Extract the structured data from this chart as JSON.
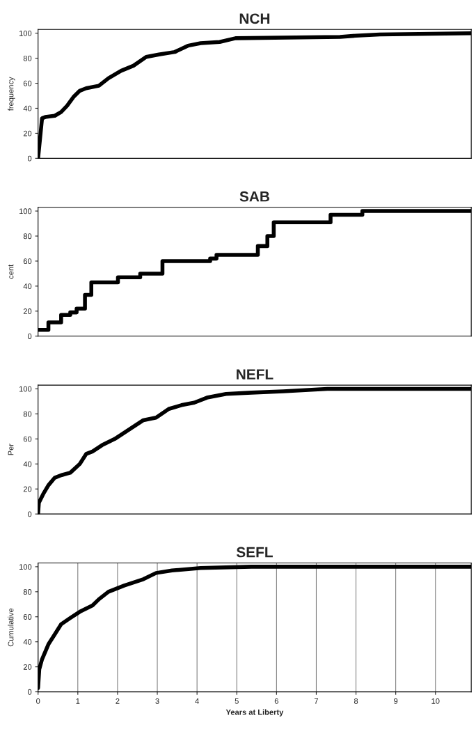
{
  "chart_data": [
    {
      "type": "line",
      "title": "NCH",
      "ylabel": "frequency",
      "xlim": [
        0,
        10.9
      ],
      "ylim": [
        0,
        103
      ],
      "yticks": [
        0,
        20,
        40,
        60,
        80,
        100
      ],
      "tick_labels": "y",
      "grid": false,
      "legend": false,
      "series": [
        {
          "color": "#000000",
          "x": [
            0,
            0.1,
            0.18,
            0.42,
            0.58,
            0.73,
            0.89,
            1.05,
            1.21,
            1.53,
            1.77,
            2.09,
            2.4,
            2.72,
            3.04,
            3.44,
            3.77,
            4.09,
            4.57,
            4.97,
            7.6,
            8.0,
            8.6,
            10.9
          ],
          "values": [
            0,
            32,
            33,
            34,
            37,
            42,
            49,
            54,
            56,
            58,
            64,
            70,
            74,
            81,
            83,
            85,
            90,
            92,
            93,
            96,
            97,
            98,
            99,
            100
          ]
        }
      ]
    },
    {
      "type": "step",
      "title": "SAB",
      "ylabel": "cent",
      "xlim": [
        0,
        10.9
      ],
      "ylim": [
        0,
        103
      ],
      "yticks": [
        0,
        20,
        40,
        60,
        80,
        100
      ],
      "tick_labels": "y",
      "grid": false,
      "legend": false,
      "series": [
        {
          "color": "#000000",
          "x": [
            0,
            0.18,
            0.26,
            0.58,
            0.81,
            0.97,
            1.18,
            1.34,
            2.01,
            2.57,
            3.13,
            4.33,
            4.49,
            5.53,
            5.77,
            5.93,
            7.36,
            8.16,
            10.9
          ],
          "values": [
            5,
            5,
            11,
            17,
            19,
            22,
            33,
            43,
            47,
            50,
            60,
            62,
            65,
            72,
            80,
            91,
            97,
            100,
            100
          ]
        }
      ]
    },
    {
      "type": "line",
      "title": "NEFL",
      "ylabel": "Per",
      "xlim": [
        0,
        10.9
      ],
      "ylim": [
        0,
        103
      ],
      "yticks": [
        0,
        20,
        40,
        60,
        80,
        100
      ],
      "tick_labels": "y",
      "grid": false,
      "legend": false,
      "series": [
        {
          "color": "#000000",
          "x": [
            0,
            0.02,
            0.13,
            0.26,
            0.42,
            0.58,
            0.81,
            1.05,
            1.21,
            1.37,
            1.61,
            1.93,
            2.17,
            2.41,
            2.65,
            2.97,
            3.29,
            3.61,
            3.93,
            4.25,
            4.73,
            5.37,
            6.17,
            7.28,
            10.9
          ],
          "values": [
            0,
            9,
            16,
            23,
            29,
            31,
            33,
            40,
            48,
            50,
            55,
            60,
            65,
            70,
            75,
            77,
            84,
            87,
            89,
            93,
            96,
            97,
            98,
            100,
            100
          ]
        }
      ]
    },
    {
      "type": "line",
      "title": "SEFL",
      "ylabel": "Cumulative",
      "xlabel": "Years at Liberty",
      "xlim": [
        0,
        10.9
      ],
      "ylim": [
        0,
        103
      ],
      "xticks": [
        0,
        1,
        2,
        3,
        4,
        5,
        6,
        7,
        8,
        9,
        10
      ],
      "yticks": [
        0,
        20,
        40,
        60,
        80,
        100
      ],
      "grid": "x",
      "legend": false,
      "series": [
        {
          "color": "#000000",
          "x": [
            0,
            0.03,
            0.1,
            0.26,
            0.42,
            0.58,
            0.81,
            1.05,
            1.37,
            1.53,
            1.77,
            2.17,
            2.65,
            2.97,
            3.37,
            4.09,
            5.37,
            10.9
          ],
          "values": [
            3,
            18,
            26,
            38,
            46,
            54,
            59,
            64,
            69,
            74,
            80,
            85,
            90,
            95,
            97,
            99,
            100,
            100
          ]
        }
      ]
    }
  ]
}
